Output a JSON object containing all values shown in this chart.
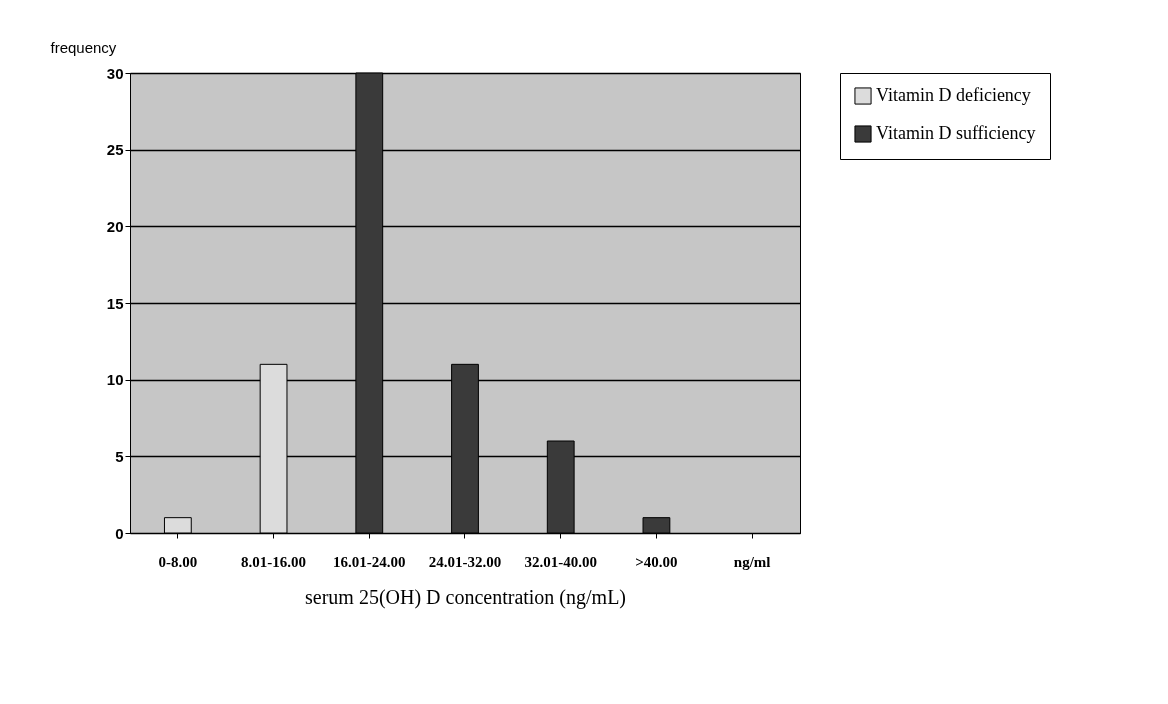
{
  "chart_data": {
    "type": "bar",
    "ylabel": "frequency",
    "xlabel": "serum 25(OH) D concentration (ng/mL)",
    "categories": [
      "0-8.00",
      "8.01-16.00",
      "16.01-24.00",
      "24.01-32.00",
      "32.01-40.00",
      ">40.00",
      "ng/ml"
    ],
    "series": [
      {
        "name": "Vitamin D deficiency",
        "color": "#dcdcdc",
        "values": [
          1,
          11,
          null,
          null,
          null,
          null,
          null
        ]
      },
      {
        "name": "Vitamin D sufficiency",
        "color": "#3a3a3a",
        "values": [
          null,
          null,
          30,
          11,
          6,
          1,
          null
        ]
      }
    ],
    "ylim": [
      0,
      30
    ],
    "yticks": [
      0,
      5,
      10,
      15,
      20,
      25,
      30
    ],
    "grid": "y",
    "legend": "right"
  }
}
